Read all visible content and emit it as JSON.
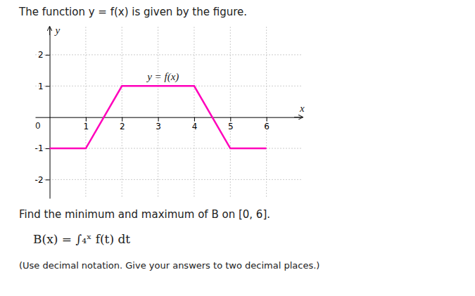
{
  "chart_data": {
    "type": "line",
    "title": "The function y = f(x) is given by the figure.",
    "x": [
      0,
      1,
      2,
      4,
      5,
      6
    ],
    "values": [
      -1,
      -1,
      1,
      1,
      -1,
      -1
    ],
    "color": "#ff00bb",
    "xlim": [
      -0.4,
      7.0
    ],
    "ylim": [
      -2.6,
      2.9
    ],
    "xticks": [
      1,
      2,
      3,
      4,
      5,
      6
    ],
    "yticks": [
      -2,
      -1,
      1,
      2
    ],
    "grid": true,
    "x_label": "x",
    "y_label": "y",
    "annotations": [
      {
        "text": "0",
        "x": -0.25,
        "y": -0.12
      },
      {
        "text": "y = f(x)",
        "x": 2.7,
        "y": 1.18
      },
      {
        "text": "Find the minimum and maximum of B on [0, 6]."
      },
      {
        "text": "B(x) = ∫₄ˣ f(t) dt"
      },
      {
        "text": "(Use decimal notation. Give your answers to two decimal places.)"
      }
    ]
  }
}
